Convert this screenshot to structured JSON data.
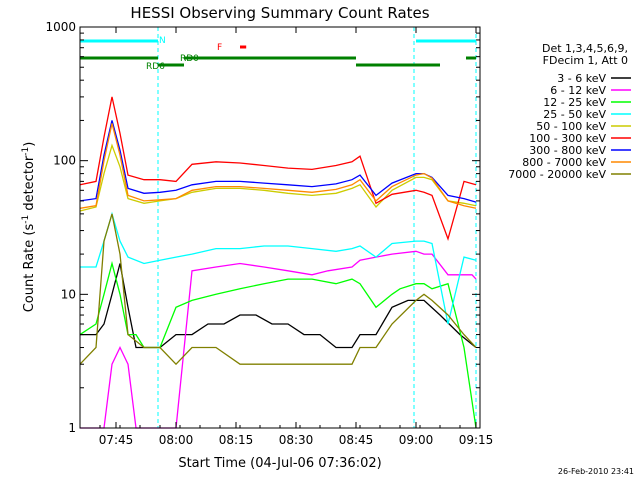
{
  "chart_data": {
    "type": "line",
    "title": "HESSI Observing Summary Count Rates",
    "xlabel": "Start Time (04-Jul-06 07:36:02)",
    "ylabel_main": "Count Rate (s",
    "ylabel_sup1": "-1",
    "ylabel_mid": " detector",
    "ylabel_sup2": "-1",
    "ylabel_end": ")",
    "yscale": "log",
    "ylim": [
      1,
      1000
    ],
    "xlim_minutes": [
      0,
      100
    ],
    "x_ticks": [
      "07:45",
      "08:00",
      "08:15",
      "08:30",
      "08:45",
      "09:00",
      "09:15"
    ],
    "x_tick_minutes": [
      9,
      24,
      39,
      54,
      69,
      84,
      99
    ],
    "y_ticks": [
      "1",
      "10",
      "100",
      "1000"
    ],
    "y_tick_values": [
      1,
      10,
      100,
      1000
    ],
    "legend_header": [
      "Det 1,3,4,5,6,9,",
      "FDecim 1, Att 0"
    ],
    "legend_placement": "right",
    "series": [
      {
        "name": "3 - 6 keV",
        "color": "#000000",
        "x": [
          0,
          4,
          6,
          8,
          10,
          12,
          14,
          16,
          18,
          20,
          24,
          28,
          32,
          36,
          40,
          44,
          48,
          52,
          56,
          60,
          64,
          68,
          70,
          74,
          78,
          82,
          86,
          90,
          95,
          99
        ],
        "y": [
          5,
          5,
          6,
          10,
          17,
          8,
          4,
          4,
          4,
          4,
          5,
          5,
          6,
          6,
          7,
          7,
          6,
          6,
          5,
          5,
          4,
          4,
          5,
          5,
          8,
          9,
          9,
          7,
          5,
          4
        ]
      },
      {
        "name": "6 - 12 keV",
        "color": "#ff00ff",
        "x": [
          0,
          6,
          8,
          10,
          12,
          14,
          20,
          24,
          28,
          34,
          40,
          46,
          52,
          58,
          62,
          68,
          70,
          74,
          78,
          84,
          86,
          88,
          92,
          98,
          99
        ],
        "y": [
          1,
          1,
          3,
          4,
          3,
          1,
          1,
          1,
          15,
          16,
          17,
          16,
          15,
          14,
          15,
          16,
          18,
          19,
          20,
          21,
          20,
          20,
          14,
          14,
          13
        ]
      },
      {
        "name": "12 - 25 keV",
        "color": "#00ff00",
        "x": [
          0,
          4,
          6,
          8,
          10,
          12,
          14,
          16,
          20,
          24,
          28,
          34,
          40,
          46,
          52,
          58,
          64,
          68,
          70,
          74,
          78,
          80,
          84,
          86,
          88,
          92,
          96,
          99
        ],
        "y": [
          5,
          6,
          10,
          17,
          10,
          5,
          5,
          4,
          4,
          8,
          9,
          10,
          11,
          12,
          13,
          13,
          12,
          13,
          12,
          8,
          10,
          11,
          12,
          12,
          11,
          12,
          4,
          1
        ]
      },
      {
        "name": "25 - 50 keV",
        "color": "#00ffff",
        "x": [
          0,
          4,
          6,
          8,
          10,
          12,
          16,
          20,
          24,
          28,
          34,
          40,
          46,
          52,
          58,
          64,
          68,
          70,
          74,
          78,
          84,
          86,
          88,
          92,
          96,
          99
        ],
        "y": [
          16,
          16,
          25,
          40,
          25,
          19,
          17,
          18,
          19,
          20,
          22,
          22,
          23,
          23,
          22,
          21,
          22,
          23,
          19,
          24,
          25,
          25,
          24,
          6,
          19,
          18
        ]
      },
      {
        "name": "50 - 100 keV",
        "color": "#cccc00",
        "x": [
          0,
          4,
          6,
          8,
          10,
          12,
          16,
          20,
          24,
          28,
          34,
          40,
          46,
          52,
          58,
          64,
          68,
          70,
          74,
          78,
          84,
          86,
          88,
          92,
          96,
          99
        ],
        "y": [
          42,
          45,
          80,
          130,
          90,
          52,
          48,
          50,
          52,
          58,
          62,
          62,
          60,
          57,
          55,
          57,
          62,
          66,
          45,
          60,
          75,
          75,
          72,
          50,
          48,
          46
        ]
      },
      {
        "name": "100 - 300 keV",
        "color": "#ff0000",
        "x": [
          0,
          4,
          6,
          8,
          10,
          12,
          16,
          20,
          24,
          28,
          34,
          40,
          46,
          52,
          58,
          64,
          68,
          70,
          74,
          78,
          84,
          86,
          88,
          92,
          96,
          99
        ],
        "y": [
          66,
          70,
          150,
          300,
          160,
          78,
          72,
          72,
          70,
          94,
          98,
          96,
          92,
          88,
          86,
          92,
          98,
          108,
          48,
          56,
          60,
          58,
          55,
          26,
          70,
          66
        ]
      },
      {
        "name": "300 - 800 keV",
        "color": "#0000ff",
        "x": [
          0,
          4,
          6,
          8,
          10,
          12,
          16,
          20,
          24,
          28,
          34,
          40,
          46,
          52,
          58,
          64,
          68,
          70,
          74,
          78,
          84,
          86,
          88,
          92,
          96,
          99
        ],
        "y": [
          50,
          52,
          110,
          200,
          120,
          62,
          57,
          58,
          60,
          66,
          70,
          70,
          68,
          66,
          64,
          67,
          72,
          78,
          55,
          68,
          80,
          80,
          75,
          55,
          52,
          49
        ]
      },
      {
        "name": "800 - 7000 keV",
        "color": "#ff8800",
        "x": [
          0,
          4,
          6,
          8,
          10,
          12,
          16,
          20,
          24,
          28,
          34,
          40,
          46,
          52,
          58,
          64,
          68,
          70,
          74,
          78,
          84,
          86,
          88,
          92,
          96,
          99
        ],
        "y": [
          44,
          46,
          100,
          190,
          110,
          55,
          50,
          51,
          52,
          60,
          64,
          64,
          62,
          60,
          58,
          61,
          66,
          72,
          50,
          64,
          78,
          80,
          74,
          50,
          46,
          44
        ]
      },
      {
        "name": "7000 - 20000 keV",
        "color": "#808000",
        "x": [
          0,
          4,
          6,
          8,
          10,
          12,
          16,
          20,
          24,
          28,
          34,
          40,
          46,
          52,
          58,
          64,
          68,
          70,
          74,
          78,
          84,
          86,
          88,
          92,
          96,
          99
        ],
        "y": [
          3,
          4,
          25,
          40,
          20,
          5,
          4,
          4,
          3,
          4,
          4,
          3,
          3,
          3,
          3,
          3,
          3,
          4,
          4,
          6,
          9,
          10,
          9,
          7,
          5,
          4
        ]
      }
    ],
    "flag_bars": [
      {
        "label": "N",
        "color": "#00ffff",
        "row": 1,
        "segments": [
          [
            0,
            19.5
          ],
          [
            84,
            99
          ]
        ]
      },
      {
        "label": "F",
        "color": "#ff0000",
        "row": 2,
        "segments": [
          [
            40,
            40.8
          ]
        ]
      },
      {
        "label": "RD0",
        "color": "#008000",
        "row": 3,
        "segments": [
          [
            0,
            19.5
          ],
          [
            26,
            69
          ],
          [
            96.5,
            99
          ]
        ]
      },
      {
        "label": "RD6",
        "color": "#008000",
        "row": 4,
        "segments": [
          [
            19.5,
            26
          ],
          [
            69,
            90
          ]
        ]
      }
    ],
    "vertical_markers_minutes": [
      19.5,
      83.5,
      99
    ]
  },
  "timestamp": "26-Feb-2010 23:41"
}
